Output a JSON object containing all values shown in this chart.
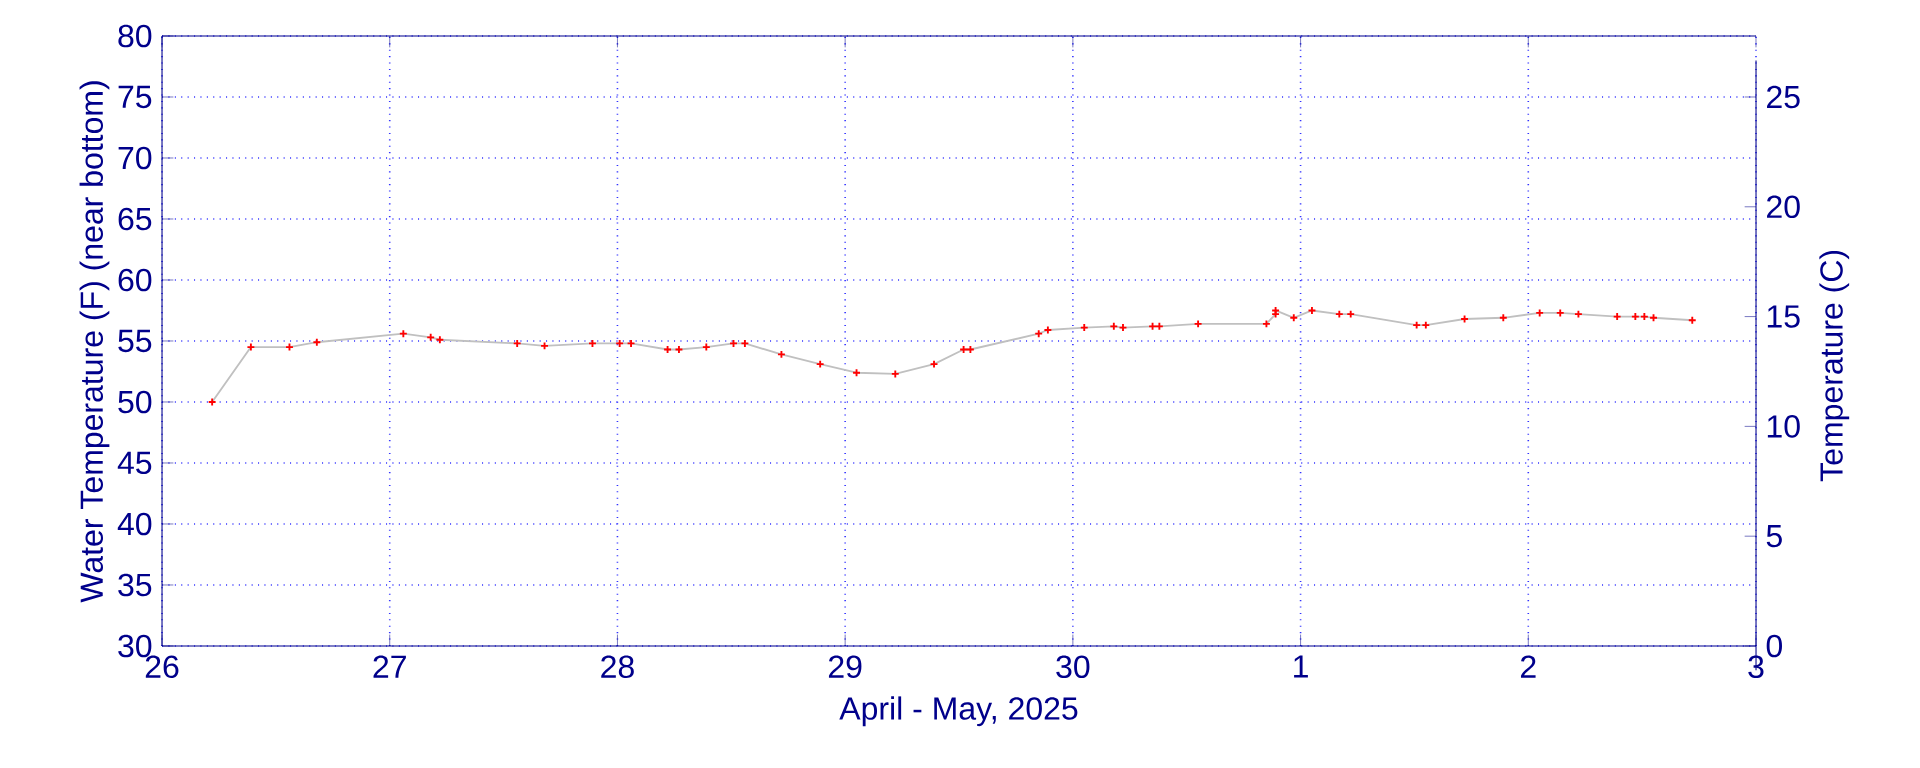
{
  "chart_data": {
    "type": "line",
    "xlabel": "April - May, 2025",
    "ylabel": "Water Temperature (F) (near bottom)",
    "y2label": "Temperature (C)",
    "x": [
      "2025-04-26T05:17",
      "2025-04-26T09:22",
      "2025-04-26T13:26",
      "2025-04-26T16:19",
      "2025-04-27T01:26",
      "2025-04-27T04:19",
      "2025-04-27T05:17",
      "2025-04-27T13:26",
      "2025-04-27T16:19",
      "2025-04-27T21:22",
      "2025-04-28T00:14",
      "2025-04-28T01:26",
      "2025-04-28T05:17",
      "2025-04-28T06:29",
      "2025-04-28T09:22",
      "2025-04-28T12:14",
      "2025-04-28T13:26",
      "2025-04-28T17:17",
      "2025-04-28T21:22",
      "2025-04-29T01:12",
      "2025-04-29T05:17",
      "2025-04-29T09:22",
      "2025-04-29T12:29",
      "2025-04-29T13:12",
      "2025-04-29T20:24",
      "2025-04-29T21:22",
      "2025-04-30T01:12",
      "2025-04-30T04:19",
      "2025-04-30T05:17",
      "2025-04-30T08:24",
      "2025-04-30T09:07",
      "2025-04-30T13:12",
      "2025-04-30T20:24",
      "2025-04-30T21:22",
      "2025-04-30T21:22",
      "2025-04-30T23:17",
      "2025-05-01T01:12",
      "2025-05-01T04:05",
      "2025-05-01T05:17",
      "2025-05-01T12:14",
      "2025-05-01T13:12",
      "2025-05-01T17:17",
      "2025-05-01T21:22",
      "2025-05-02T01:12",
      "2025-05-02T03:22",
      "2025-05-02T05:17",
      "2025-05-02T09:22",
      "2025-05-02T11:17",
      "2025-05-02T12:14",
      "2025-05-02T13:12",
      "2025-05-02T17:17"
    ],
    "series": [
      {
        "color": "#c0c0c0",
        "colors": [
          "#ff0000",
          "#ff0000",
          "#ff0000",
          "#ff0000",
          "#ff0000",
          "#ff0000",
          "#ff0000",
          "#ff0000",
          "#ff0000",
          "#ff0000",
          "#ff0000",
          "#ff0000",
          "#ff0000",
          "#ff0000",
          "#ff0000",
          "#ff0000",
          "#ff0000",
          "#ff0000",
          "#ff0000",
          "#ff0000",
          "#ff0000",
          "#ff0000",
          "#ff0000",
          "#ff0000",
          "#ff0000",
          "#ff0000",
          "#ff0000",
          "#ff0000",
          "#ff0000",
          "#ff0000",
          "#ff0000",
          "#ff0000",
          "#ff0000",
          "#ff0000",
          "#ff0000",
          "#ff0000",
          "#ff0000",
          "#ff0000",
          "#ff0000",
          "#ff0000",
          "#ff0000",
          "#ff0000",
          "#ff0000",
          "#ff0000",
          "#ff0000",
          "#ff0000",
          "#ff0000",
          "#ff0000",
          "#ff0000",
          "#ff0000",
          "#ff0000"
        ],
        "values": [
          50.0,
          54.5,
          54.5,
          54.9,
          55.6,
          55.3,
          55.1,
          54.8,
          54.6,
          54.8,
          54.8,
          54.8,
          54.3,
          54.3,
          54.5,
          54.8,
          54.8,
          53.9,
          53.1,
          52.4,
          52.3,
          53.1,
          54.3,
          54.3,
          55.6,
          55.9,
          56.1,
          56.2,
          56.1,
          56.2,
          56.2,
          56.4,
          56.4,
          57.2,
          57.5,
          56.9,
          57.5,
          57.2,
          57.2,
          56.3,
          56.3,
          56.8,
          56.9,
          57.3,
          57.3,
          57.2,
          57.0,
          57.0,
          57.0,
          56.9,
          56.7
        ]
      }
    ],
    "xlim": [
      "2025-04-26",
      "2025-05-03"
    ],
    "xticks": [
      {
        "value": "2025-04-26",
        "label": "26"
      },
      {
        "value": "2025-04-27",
        "label": "27"
      },
      {
        "value": "2025-04-28",
        "label": "28"
      },
      {
        "value": "2025-04-29",
        "label": "29"
      },
      {
        "value": "2025-04-30",
        "label": "30"
      },
      {
        "value": "2025-05-01",
        "label": "1"
      },
      {
        "value": "2025-05-02",
        "label": "2"
      },
      {
        "value": "2025-05-03",
        "label": "3"
      }
    ],
    "ylim": [
      30,
      80
    ],
    "yticks": [
      30,
      35,
      40,
      45,
      50,
      55,
      60,
      65,
      70,
      75,
      80
    ],
    "y2lim": [
      -1.111,
      26.667
    ],
    "y2ticks": [
      0,
      5,
      10,
      15,
      20,
      25
    ],
    "grid": true,
    "marker": "cross",
    "line_style": "solid"
  }
}
